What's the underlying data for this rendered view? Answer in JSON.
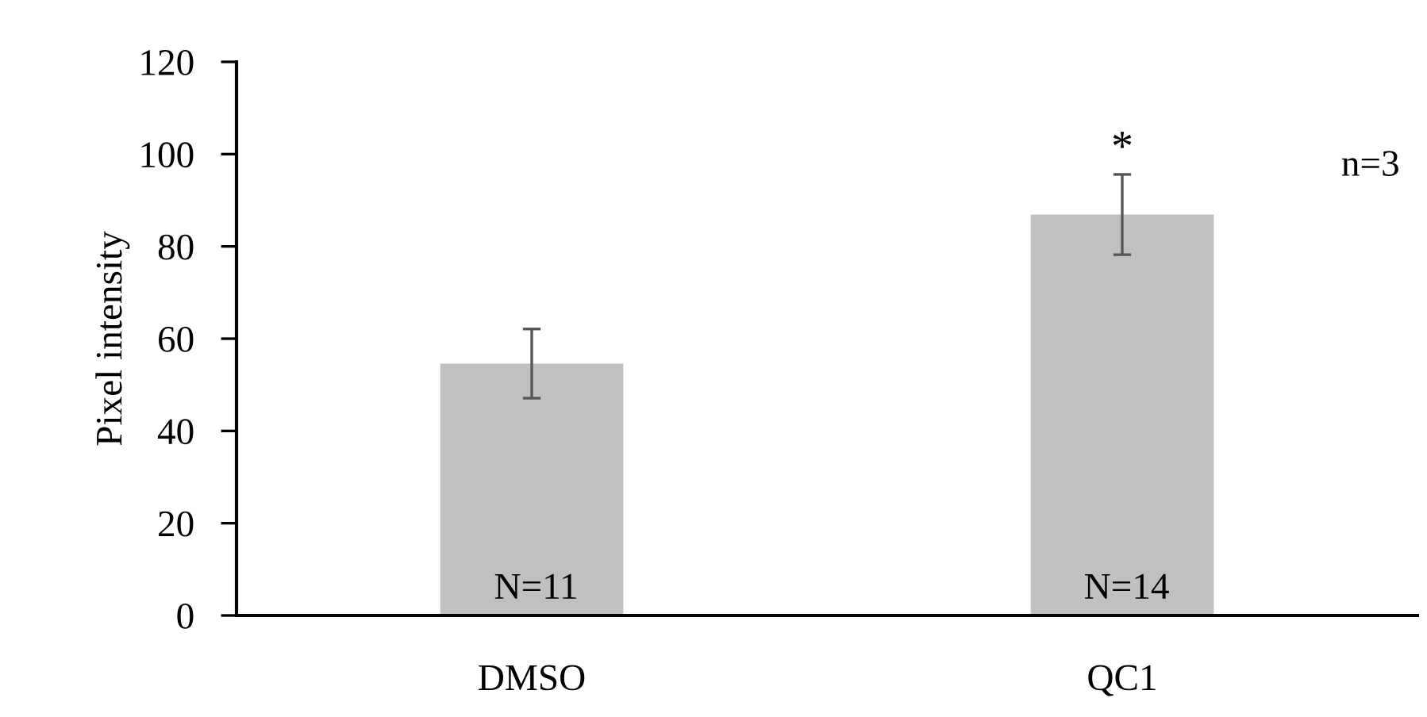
{
  "chart_data": {
    "type": "bar",
    "ylabel": "Pixel intensity",
    "categories": [
      "DMSO",
      "QC1"
    ],
    "values": [
      54.6,
      86.9
    ],
    "errors": [
      7.5,
      8.7
    ],
    "color": "#c0c0c0",
    "ylim": [
      0,
      120
    ],
    "yticks": [
      0,
      20,
      40,
      60,
      80,
      100,
      120
    ],
    "grid": false,
    "legend": false,
    "annotations": [
      "N=11",
      "N=14",
      {
        "text": "*",
        "x": "QC1",
        "y": 95.6
      },
      "n=3"
    ]
  }
}
